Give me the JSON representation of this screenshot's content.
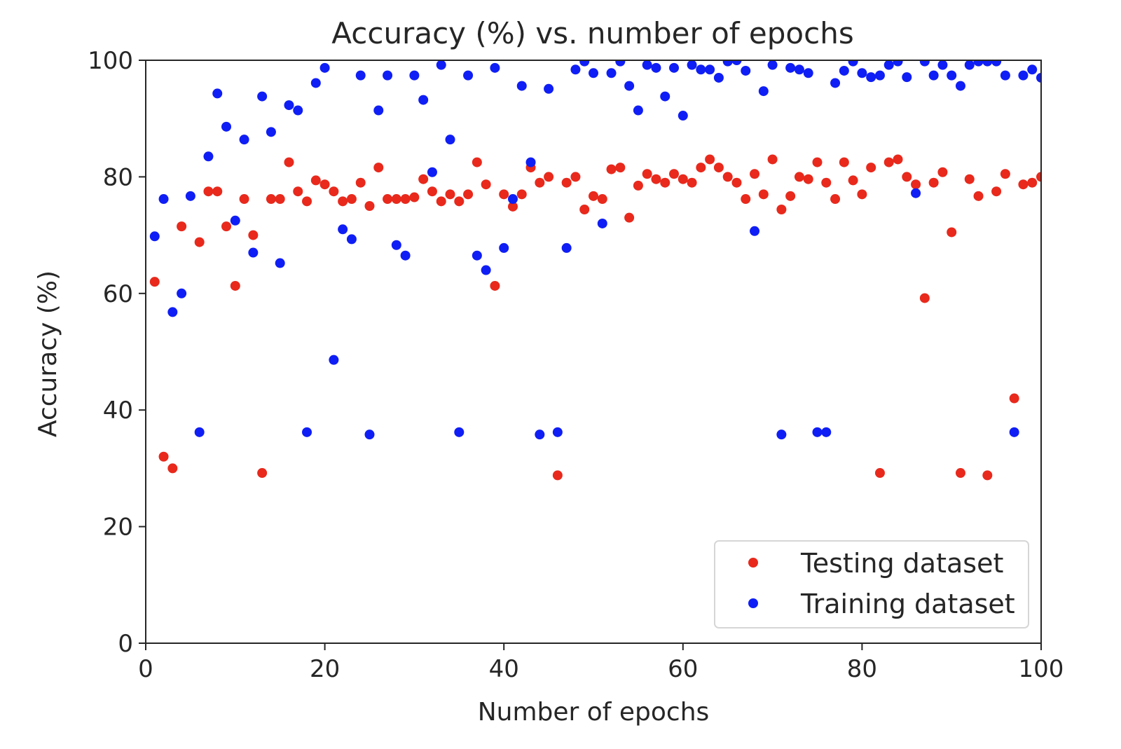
{
  "chart_data": {
    "type": "scatter",
    "title": "Accuracy (%) vs. number of epochs",
    "xlabel": "Number of epochs",
    "ylabel": "Accuracy (%)",
    "xlim": [
      0,
      100
    ],
    "ylim": [
      0,
      100
    ],
    "xticks": [
      0,
      20,
      40,
      60,
      80,
      100
    ],
    "yticks": [
      0,
      20,
      40,
      60,
      80,
      100
    ],
    "grid": false,
    "legend_position": "lower-right",
    "series": [
      {
        "name": "Testing dataset",
        "color": "#e8291c",
        "x": [
          1,
          2,
          3,
          4,
          6,
          7,
          8,
          9,
          10,
          11,
          12,
          13,
          14,
          15,
          16,
          17,
          18,
          19,
          20,
          21,
          22,
          23,
          24,
          25,
          26,
          27,
          28,
          29,
          30,
          31,
          32,
          33,
          34,
          35,
          36,
          37,
          38,
          39,
          40,
          41,
          42,
          43,
          44,
          45,
          46,
          47,
          48,
          49,
          50,
          51,
          52,
          53,
          54,
          55,
          56,
          57,
          58,
          59,
          60,
          61,
          62,
          63,
          64,
          65,
          66,
          67,
          68,
          69,
          70,
          71,
          72,
          73,
          74,
          75,
          76,
          77,
          78,
          79,
          80,
          81,
          82,
          83,
          84,
          85,
          86,
          87,
          88,
          89,
          90,
          91,
          92,
          93,
          94,
          95,
          96,
          97,
          98,
          99,
          100
        ],
        "y": [
          62,
          32,
          30,
          71.5,
          68.8,
          77.5,
          77.5,
          71.5,
          61.3,
          76.2,
          70,
          29.2,
          76.2,
          76.2,
          82.5,
          77.5,
          75.8,
          79.4,
          78.7,
          77.5,
          75.8,
          76.2,
          79,
          75,
          81.6,
          76.2,
          76.2,
          76.2,
          76.5,
          79.6,
          77.5,
          75.8,
          77,
          75.8,
          77,
          82.5,
          78.7,
          61.3,
          77,
          74.9,
          77,
          81.6,
          79,
          80,
          28.8,
          79,
          80,
          74.4,
          76.7,
          76.2,
          81.3,
          81.6,
          73,
          78.5,
          80.5,
          79.6,
          79,
          80.5,
          79.6,
          79,
          81.6,
          83,
          81.6,
          80,
          79,
          76.2,
          80.5,
          77,
          83,
          74.4,
          76.7,
          80,
          79.6,
          82.5,
          79,
          76.2,
          82.5,
          79.4,
          77,
          81.6,
          29.2,
          82.5,
          83,
          80,
          78.7,
          59.2,
          79,
          80.8,
          70.5,
          29.2,
          79.6,
          76.7,
          28.8,
          77.5,
          80.5,
          42,
          78.7,
          79,
          80
        ]
      },
      {
        "name": "Training dataset",
        "color": "#0f1ef5",
        "x": [
          1,
          2,
          3,
          4,
          5,
          6,
          7,
          8,
          9,
          10,
          11,
          12,
          13,
          14,
          15,
          16,
          17,
          18,
          19,
          20,
          21,
          22,
          23,
          24,
          25,
          26,
          27,
          28,
          29,
          30,
          31,
          32,
          33,
          34,
          35,
          36,
          37,
          38,
          39,
          40,
          41,
          42,
          43,
          44,
          45,
          46,
          47,
          48,
          49,
          50,
          51,
          52,
          53,
          54,
          55,
          56,
          57,
          58,
          59,
          60,
          61,
          62,
          63,
          64,
          65,
          66,
          67,
          68,
          69,
          70,
          71,
          72,
          73,
          74,
          75,
          76,
          77,
          78,
          79,
          80,
          81,
          82,
          83,
          84,
          85,
          86,
          87,
          88,
          89,
          90,
          91,
          92,
          93,
          94,
          95,
          96,
          97,
          98,
          99,
          100
        ],
        "y": [
          69.8,
          76.2,
          56.8,
          60,
          76.7,
          36.2,
          83.5,
          94.3,
          88.6,
          72.5,
          86.4,
          67,
          93.8,
          87.7,
          65.2,
          92.3,
          91.4,
          36.2,
          96.1,
          98.7,
          48.6,
          71,
          69.3,
          97.4,
          35.8,
          91.4,
          97.4,
          68.3,
          66.5,
          97.4,
          93.2,
          80.8,
          99.2,
          86.4,
          36.2,
          97.4,
          66.5,
          64,
          98.7,
          67.8,
          76.2,
          95.6,
          82.5,
          35.8,
          95.1,
          36.2,
          67.8,
          98.4,
          99.8,
          97.8,
          72,
          97.8,
          99.8,
          95.6,
          91.4,
          99.2,
          98.7,
          93.8,
          98.7,
          90.5,
          99.2,
          98.4,
          98.4,
          97,
          99.8,
          100,
          98.2,
          70.7,
          94.7,
          99.2,
          35.8,
          98.7,
          98.4,
          97.8,
          36.2,
          36.2,
          96.1,
          98.2,
          99.8,
          97.8,
          97.1,
          97.4,
          99.2,
          99.8,
          97.1,
          77.2,
          99.8,
          97.4,
          99.2,
          97.4,
          95.6,
          99.2,
          99.8,
          99.8,
          99.8,
          97.4,
          36.2,
          97.4,
          98.4,
          97
        ]
      }
    ]
  }
}
